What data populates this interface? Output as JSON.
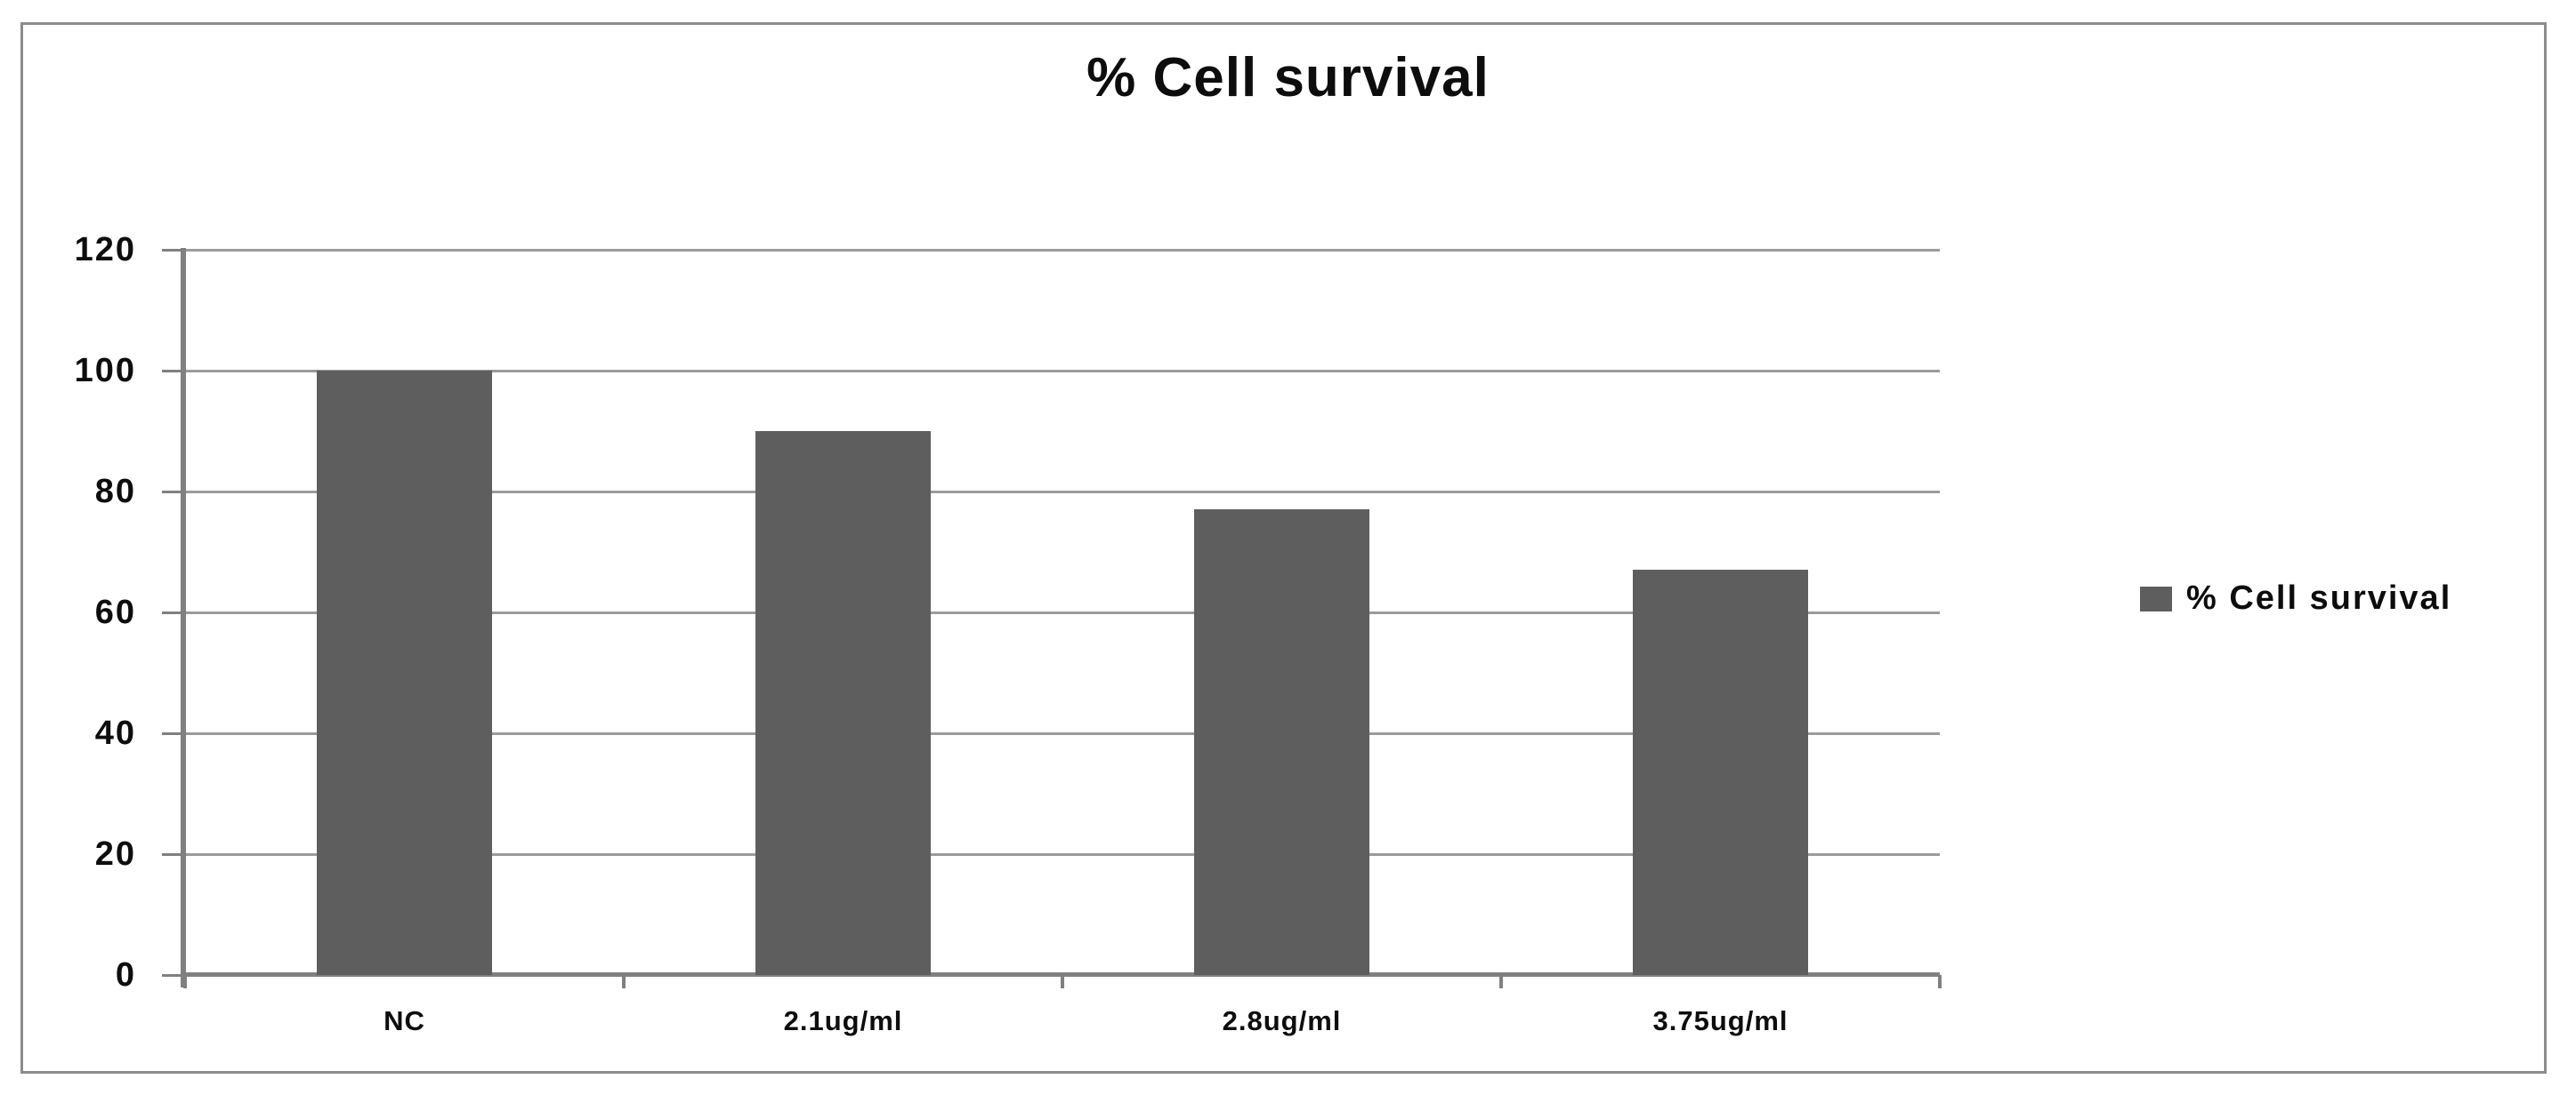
{
  "page": {
    "background_color": "#ffffff",
    "frame_border_color": "#8c8c8c"
  },
  "chart_data": {
    "type": "bar",
    "title": "% Cell survival",
    "categories": [
      "NC",
      "2.1ug/ml",
      "2.8ug/ml",
      "3.75ug/ml"
    ],
    "values": [
      100,
      90,
      77,
      67
    ],
    "series_name": "% Cell survival",
    "xlabel": "",
    "ylabel": "",
    "ylim": [
      0,
      120
    ],
    "yticks": [
      0,
      20,
      40,
      60,
      80,
      100,
      120
    ],
    "grid": true,
    "legend_position": "right",
    "bar_color": "#5e5e5e",
    "gridline_color": "#9b9b9b",
    "axis_color": "#808080"
  },
  "legend": {
    "label": "% Cell survival",
    "marker_color": "#5e5e5e"
  }
}
